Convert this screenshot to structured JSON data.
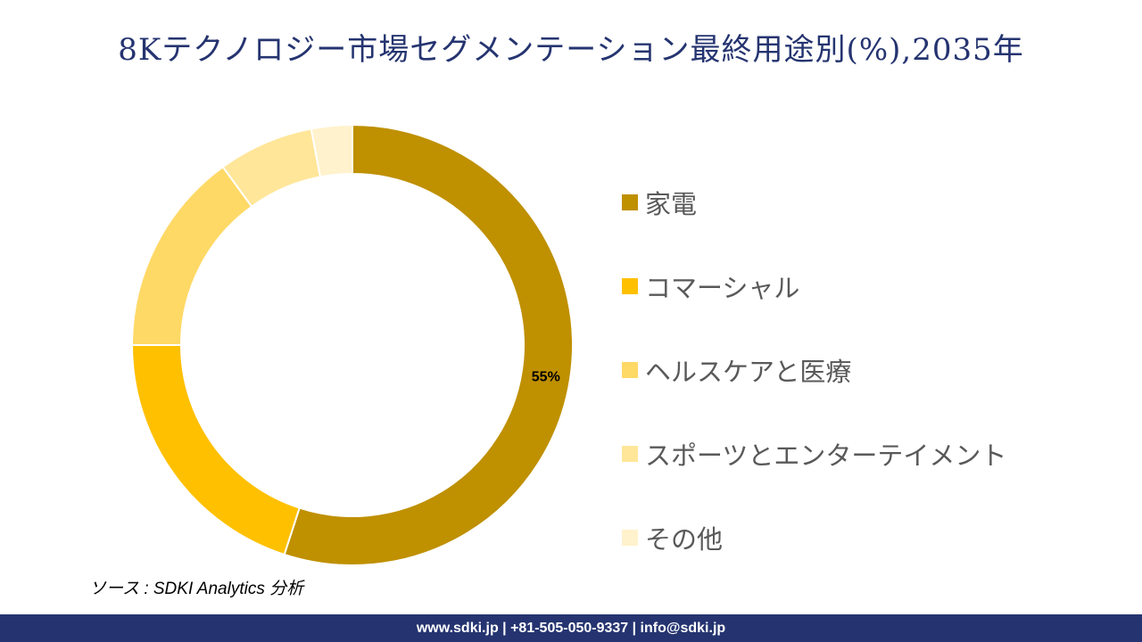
{
  "title": "8Kテクノロジー市場セグメンテーション最終用途別(%),2035年",
  "chart_data": {
    "type": "pie",
    "donut": true,
    "title": "8Kテクノロジー市場セグメンテーション最終用途別(%),2035年",
    "categories": [
      "家電",
      "コマーシャル",
      "ヘルスケアと医療",
      "スポーツとエンターテイメント",
      "その他"
    ],
    "values": [
      55,
      20,
      15,
      7,
      3
    ],
    "colors": [
      "#BF9000",
      "#FFC000",
      "#FFD966",
      "#FFE699",
      "#FFF2CC"
    ],
    "data_labels": [
      "55%",
      "",
      "",
      "",
      ""
    ],
    "legend_placement": "right"
  },
  "source": "ソース : SDKI Analytics 分析",
  "footer": "www.sdki.jp | +81-505-050-9337 | info@sdki.jp"
}
